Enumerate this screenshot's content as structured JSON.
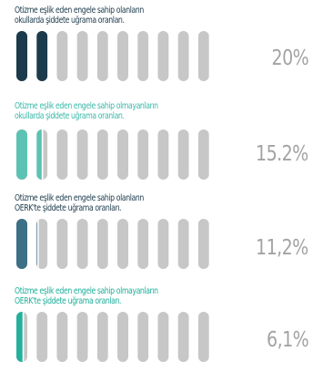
{
  "chart_data": [
    {
      "type": "bar",
      "title_lines": [
        "Otizme eşlik eden engele sahip olanların",
        "okullarda şiddete uğrama oranları."
      ],
      "value_label": "20%",
      "value": 20,
      "color": "#1b3a4b",
      "title_color": "#1b3a4b",
      "pill_count": 10,
      "max": 100
    },
    {
      "type": "bar",
      "title_lines": [
        "Otizme eşlik eden engele sahip olmayanların",
        "okullarda şiddete uğrama oranları."
      ],
      "value_label": "15.2%",
      "value": 15.2,
      "color": "#5cc2b3",
      "title_color": "#3bb8a8",
      "pill_count": 10,
      "max": 100
    },
    {
      "type": "bar",
      "title_lines": [
        "Otizme eşlik eden engele sahip olanların",
        "OERK'te şiddete uğrama oranları."
      ],
      "value_label": "11,2%",
      "value": 11.2,
      "color": "#3d6f86",
      "title_color": "#1b3a4b",
      "pill_count": 10,
      "max": 100
    },
    {
      "type": "bar",
      "title_lines": [
        "Otizme eşlik eden engele sahip olmayanların",
        "OERK'te şiddete uğrama oranları."
      ],
      "value_label": "6,1%",
      "value": 6.1,
      "color": "#24b09c",
      "title_color": "#1fae9a",
      "pill_count": 10,
      "max": 100
    }
  ]
}
